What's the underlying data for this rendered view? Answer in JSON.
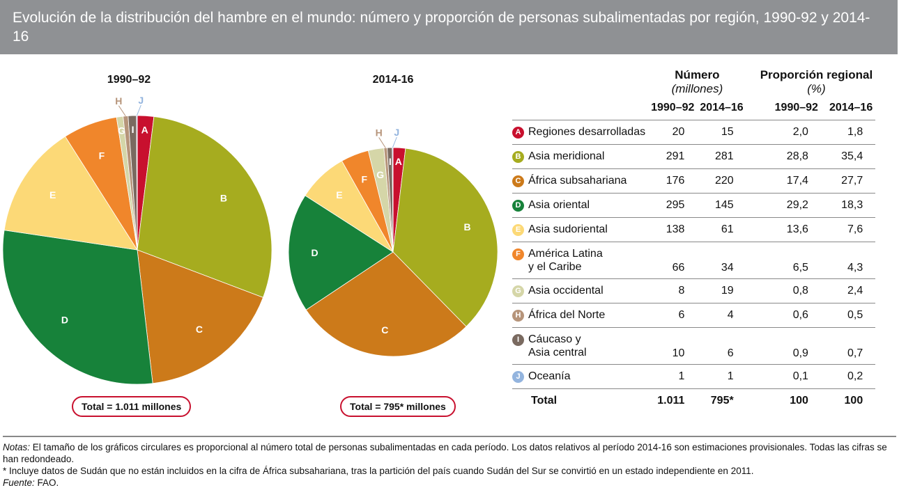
{
  "title": "Evolución de la distribución del hambre en el mundo: número y proporción de personas subalimentadas por región, 1990-92 y 2014-16",
  "chart_data": [
    {
      "type": "pie",
      "title": "1990–92",
      "total_label": "Total = 1.011 millones",
      "labels": [
        "A",
        "B",
        "C",
        "D",
        "E",
        "F",
        "G",
        "H",
        "I",
        "J"
      ],
      "values": [
        20,
        291,
        176,
        295,
        138,
        66,
        8,
        6,
        10,
        1
      ]
    },
    {
      "type": "pie",
      "title": "2014-16",
      "total_label": "Total = 795* millones",
      "labels": [
        "A",
        "B",
        "C",
        "D",
        "E",
        "F",
        "G",
        "H",
        "I",
        "J"
      ],
      "values": [
        15,
        281,
        220,
        145,
        61,
        34,
        19,
        4,
        6,
        1
      ]
    }
  ],
  "colors": [
    "#c8102e",
    "#a6ac1f",
    "#cc7a1a",
    "#17823a",
    "#fcd977",
    "#f0862b",
    "#d5d6a8",
    "#b6947a",
    "#7a6a60",
    "#93b4de"
  ],
  "table": {
    "head_numero": "Número",
    "head_numero_unit": "(millones)",
    "head_prop": "Proporción regional",
    "head_prop_unit": "(%)",
    "cols": [
      "1990–92",
      "2014–16",
      "1990–92",
      "2014–16"
    ],
    "rows": [
      {
        "key": "A",
        "name": "Regiones desarrolladas",
        "n1": "20",
        "n2": "15",
        "p1": "2,0",
        "p2": "1,8"
      },
      {
        "key": "B",
        "name": "Asia meridional",
        "n1": "291",
        "n2": "281",
        "p1": "28,8",
        "p2": "35,4"
      },
      {
        "key": "C",
        "name": "África subsahariana",
        "n1": "176",
        "n2": "220",
        "p1": "17,4",
        "p2": "27,7"
      },
      {
        "key": "D",
        "name": "Asia oriental",
        "n1": "295",
        "n2": "145",
        "p1": "29,2",
        "p2": "18,3"
      },
      {
        "key": "E",
        "name": "Asia sudoriental",
        "n1": "138",
        "n2": "61",
        "p1": "13,6",
        "p2": "7,6"
      },
      {
        "key": "F",
        "name": "América Latina\ny el Caribe",
        "n1": "66",
        "n2": "34",
        "p1": "6,5",
        "p2": "4,3"
      },
      {
        "key": "G",
        "name": "Asia occidental",
        "n1": "8",
        "n2": "19",
        "p1": "0,8",
        "p2": "2,4"
      },
      {
        "key": "H",
        "name": "África del Norte",
        "n1": "6",
        "n2": "4",
        "p1": "0,6",
        "p2": "0,5"
      },
      {
        "key": "I",
        "name": "Cáucaso y\nAsia central",
        "n1": "10",
        "n2": "6",
        "p1": "0,9",
        "p2": "0,7"
      },
      {
        "key": "J",
        "name": "Oceanía",
        "n1": "1",
        "n2": "1",
        "p1": "0,1",
        "p2": "0,2"
      }
    ],
    "total": {
      "name": "Total",
      "n1": "1.011",
      "n2": "795*",
      "p1": "100",
      "p2": "100"
    }
  },
  "notes": {
    "notes_label": "Notas:",
    "notes_text": " El tamaño de los gráficos circulares es proporcional al número total de personas subalimentadas en cada período. Los datos relativos al período 2014-16 son estimaciones provisionales. Todas las cifras se han redondeado.",
    "footnote": "* Incluye datos de Sudán que no están incluidos en la cifra de África subsahariana, tras la partición del país cuando Sudán del Sur se convirtió en un estado independiente en 2011.",
    "source_label": "Fuente:",
    "source_text": " FAO."
  }
}
